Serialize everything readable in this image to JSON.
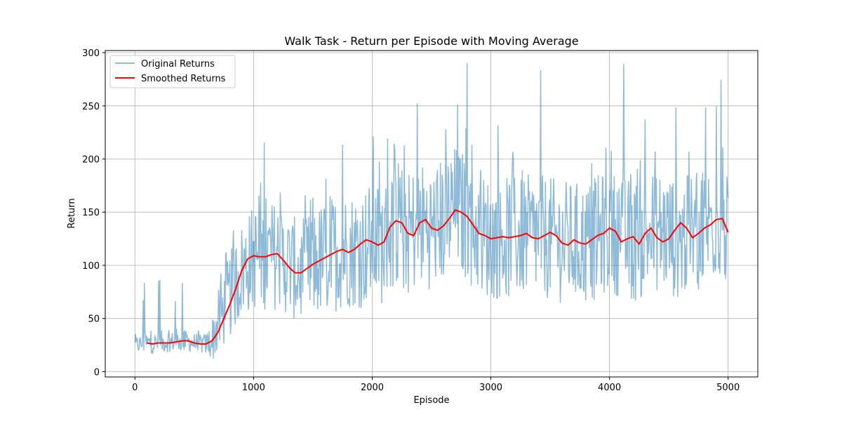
{
  "chart_data": {
    "type": "line",
    "title": "Walk Task - Return per Episode with Moving Average",
    "xlabel": "Episode",
    "ylabel": "Return",
    "xlim": [
      -250,
      5250
    ],
    "ylim": [
      -5,
      302
    ],
    "xticks": [
      0,
      1000,
      2000,
      3000,
      4000,
      5000
    ],
    "yticks": [
      0,
      50,
      100,
      150,
      200,
      250,
      300
    ],
    "grid": true,
    "legend_position": "top-left",
    "series": [
      {
        "name": "Original Returns",
        "color": "#1f77b4",
        "alpha": 0.5,
        "kind": "noisy",
        "envelope": {
          "x": [
            0,
            100,
            200,
            300,
            400,
            500,
            600,
            650,
            700,
            800,
            900,
            1000,
            1100,
            1200,
            1300,
            1400,
            1500,
            1600,
            1700,
            1800,
            1900,
            2000,
            2100,
            2200,
            2300,
            2400,
            2500,
            2600,
            2700,
            2800,
            2900,
            3000,
            3200,
            3400,
            3600,
            3800,
            4000,
            4200,
            4400,
            4600,
            4800,
            4900,
            5000
          ],
          "mean": [
            25,
            27,
            27,
            28,
            29,
            27,
            26,
            30,
            45,
            72,
            95,
            108,
            108,
            110,
            100,
            93,
            100,
            107,
            112,
            115,
            115,
            122,
            120,
            140,
            128,
            140,
            135,
            143,
            152,
            145,
            130,
            125,
            126,
            128,
            122,
            120,
            133,
            122,
            133,
            125,
            135,
            143,
            131
          ],
          "spread": [
            8,
            10,
            10,
            9,
            10,
            9,
            10,
            20,
            30,
            40,
            45,
            50,
            50,
            52,
            48,
            50,
            52,
            55,
            55,
            55,
            56,
            58,
            58,
            60,
            58,
            60,
            58,
            60,
            62,
            60,
            58,
            58,
            58,
            58,
            58,
            58,
            58,
            58,
            58,
            58,
            58,
            58,
            55
          ]
        },
        "spikes": [
          [
            70,
            67
          ],
          [
            80,
            83
          ],
          [
            200,
            85
          ],
          [
            210,
            86
          ],
          [
            340,
            66
          ],
          [
            400,
            83
          ],
          [
            1090,
            215
          ],
          [
            1750,
            213
          ],
          [
            2010,
            221
          ],
          [
            2130,
            219
          ],
          [
            2380,
            252
          ],
          [
            2720,
            251
          ],
          [
            2800,
            290
          ],
          [
            3060,
            231
          ],
          [
            3420,
            283
          ],
          [
            4120,
            289
          ],
          [
            4300,
            237
          ],
          [
            4560,
            248
          ],
          [
            4810,
            248
          ],
          [
            4900,
            249
          ],
          [
            4940,
            274
          ]
        ]
      },
      {
        "name": "Smoothed Returns",
        "color": "#ff0000",
        "points": [
          [
            100,
            27
          ],
          [
            150,
            26
          ],
          [
            200,
            27
          ],
          [
            250,
            27
          ],
          [
            300,
            27
          ],
          [
            350,
            28
          ],
          [
            400,
            29
          ],
          [
            450,
            29
          ],
          [
            500,
            27
          ],
          [
            550,
            26
          ],
          [
            600,
            26
          ],
          [
            650,
            29
          ],
          [
            700,
            37
          ],
          [
            750,
            50
          ],
          [
            800,
            63
          ],
          [
            850,
            78
          ],
          [
            900,
            95
          ],
          [
            950,
            106
          ],
          [
            1000,
            109
          ],
          [
            1050,
            108
          ],
          [
            1100,
            108
          ],
          [
            1150,
            110
          ],
          [
            1200,
            111
          ],
          [
            1250,
            105
          ],
          [
            1300,
            98
          ],
          [
            1350,
            93
          ],
          [
            1400,
            93
          ],
          [
            1450,
            97
          ],
          [
            1500,
            101
          ],
          [
            1550,
            104
          ],
          [
            1600,
            107
          ],
          [
            1650,
            110
          ],
          [
            1700,
            113
          ],
          [
            1750,
            115
          ],
          [
            1800,
            112
          ],
          [
            1850,
            115
          ],
          [
            1900,
            120
          ],
          [
            1950,
            124
          ],
          [
            2000,
            122
          ],
          [
            2050,
            119
          ],
          [
            2100,
            122
          ],
          [
            2150,
            136
          ],
          [
            2200,
            142
          ],
          [
            2250,
            140
          ],
          [
            2300,
            130
          ],
          [
            2350,
            128
          ],
          [
            2400,
            140
          ],
          [
            2450,
            143
          ],
          [
            2500,
            135
          ],
          [
            2550,
            133
          ],
          [
            2600,
            137
          ],
          [
            2650,
            144
          ],
          [
            2700,
            152
          ],
          [
            2750,
            150
          ],
          [
            2800,
            146
          ],
          [
            2850,
            138
          ],
          [
            2900,
            130
          ],
          [
            2950,
            128
          ],
          [
            3000,
            125
          ],
          [
            3050,
            126
          ],
          [
            3100,
            127
          ],
          [
            3150,
            126
          ],
          [
            3200,
            127
          ],
          [
            3250,
            128
          ],
          [
            3300,
            130
          ],
          [
            3350,
            126
          ],
          [
            3400,
            125
          ],
          [
            3450,
            128
          ],
          [
            3500,
            131
          ],
          [
            3550,
            128
          ],
          [
            3600,
            121
          ],
          [
            3650,
            119
          ],
          [
            3700,
            124
          ],
          [
            3750,
            121
          ],
          [
            3800,
            120
          ],
          [
            3850,
            124
          ],
          [
            3900,
            128
          ],
          [
            3950,
            130
          ],
          [
            4000,
            135
          ],
          [
            4050,
            132
          ],
          [
            4100,
            122
          ],
          [
            4150,
            125
          ],
          [
            4200,
            127
          ],
          [
            4250,
            120
          ],
          [
            4300,
            130
          ],
          [
            4350,
            135
          ],
          [
            4400,
            126
          ],
          [
            4450,
            122
          ],
          [
            4500,
            125
          ],
          [
            4550,
            133
          ],
          [
            4600,
            140
          ],
          [
            4650,
            135
          ],
          [
            4700,
            126
          ],
          [
            4750,
            130
          ],
          [
            4800,
            135
          ],
          [
            4850,
            138
          ],
          [
            4900,
            143
          ],
          [
            4950,
            144
          ],
          [
            5000,
            131
          ]
        ]
      }
    ]
  }
}
